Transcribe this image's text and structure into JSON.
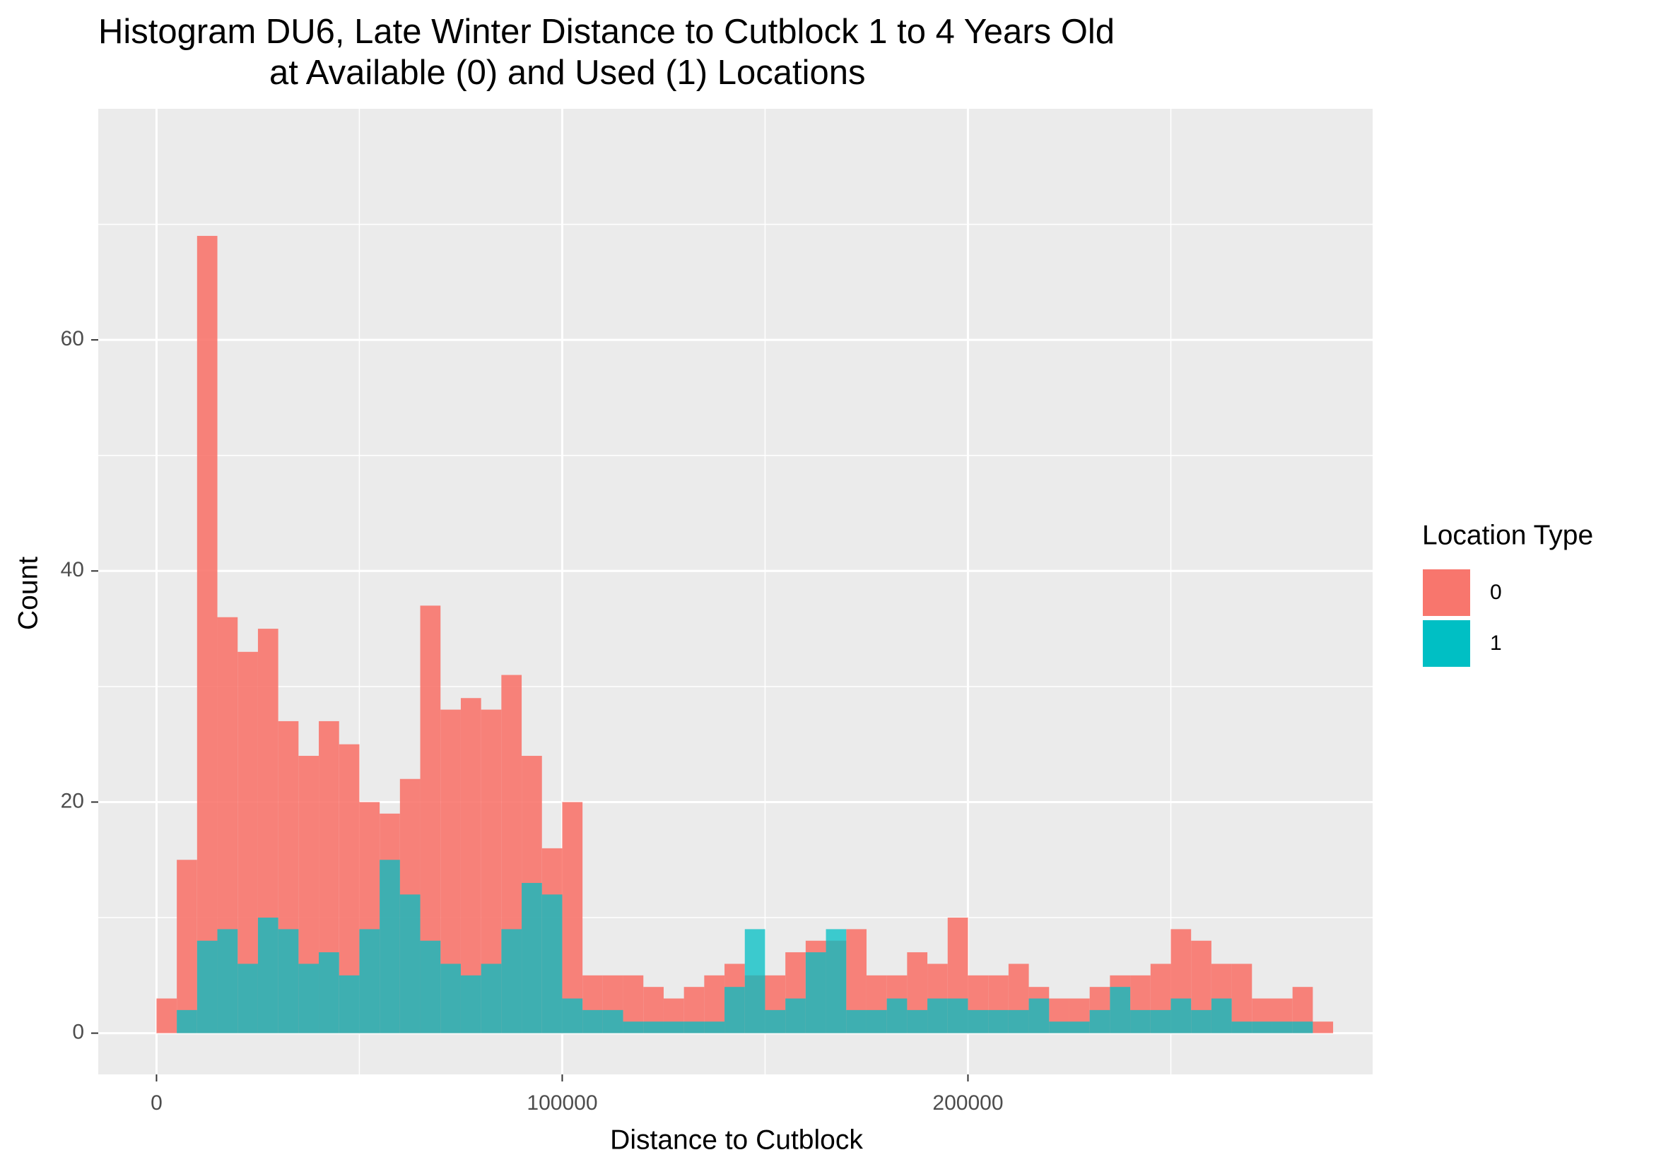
{
  "chart_data": {
    "type": "histogram",
    "title": [
      "Histogram DU6, Late Winter Distance to Cutblock 1 to 4 Years Old",
      "at Available (0) and Used (1) Locations"
    ],
    "x_label": "Distance to Cutblock",
    "y_label": "Count",
    "legend_title": "Location Type",
    "legend_position": "right",
    "grid": true,
    "xlim": [
      -14360,
      299740
    ],
    "ylim": [
      -3.57,
      80
    ],
    "xticks": [
      0,
      100000,
      200000
    ],
    "yticks": [
      0,
      20,
      40,
      60
    ],
    "x_minor_ticks": [
      50000,
      150000,
      250000
    ],
    "y_minor_ticks": [
      10,
      30,
      50,
      70
    ],
    "bins": [
      0,
      5000,
      10000,
      15000,
      20000,
      25000,
      30000,
      35000,
      40000,
      45000,
      50000,
      55000,
      60000,
      65000,
      70000,
      75000,
      80000,
      85000,
      90000,
      95000,
      100000,
      105000,
      110000,
      115000,
      120000,
      125000,
      130000,
      135000,
      140000,
      145000,
      150000,
      155000,
      160000,
      165000,
      170000,
      175000,
      180000,
      185000,
      190000,
      195000,
      200000,
      205000,
      210000,
      215000,
      220000,
      225000,
      230000,
      235000,
      240000,
      245000,
      250000,
      255000,
      260000,
      265000,
      270000,
      275000,
      280000,
      285000,
      290000
    ],
    "series": [
      {
        "name": "0",
        "color": "#f8766d",
        "values": [
          3,
          15,
          69,
          36,
          33,
          35,
          27,
          24,
          27,
          25,
          20,
          19,
          22,
          37,
          28,
          29,
          28,
          31,
          24,
          16,
          20,
          5,
          5,
          5,
          4,
          3,
          4,
          5,
          6,
          5,
          5,
          7,
          8,
          8,
          9,
          5,
          5,
          7,
          6,
          10,
          5,
          5,
          6,
          4,
          3,
          3,
          4,
          5,
          5,
          6,
          9,
          8,
          6,
          6,
          3,
          3,
          4,
          1
        ]
      },
      {
        "name": "1",
        "color": "#00bfc4",
        "values": [
          0,
          2,
          8,
          9,
          6,
          10,
          9,
          6,
          7,
          5,
          9,
          15,
          12,
          8,
          6,
          5,
          6,
          9,
          13,
          12,
          3,
          2,
          2,
          1,
          1,
          1,
          1,
          1,
          4,
          9,
          2,
          3,
          7,
          9,
          2,
          2,
          3,
          2,
          3,
          3,
          2,
          2,
          2,
          3,
          1,
          1,
          2,
          4,
          2,
          2,
          3,
          2,
          3,
          1,
          1,
          1,
          1,
          0
        ]
      }
    ]
  }
}
